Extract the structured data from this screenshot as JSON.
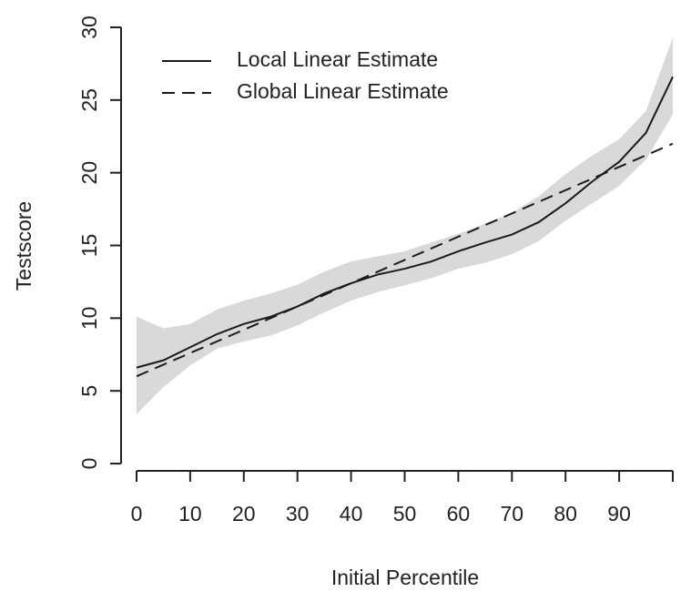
{
  "chart_data": {
    "type": "line",
    "x_label": "Initial Percentile",
    "y_label": "Testscore",
    "x": [
      0,
      5,
      10,
      15,
      20,
      25,
      30,
      35,
      40,
      45,
      50,
      55,
      60,
      65,
      70,
      75,
      80,
      85,
      90,
      95,
      100
    ],
    "series": [
      {
        "name": "Local Linear Estimate",
        "color": "#1a1a1a",
        "dash": "solid",
        "values": [
          6.6,
          7.1,
          8.0,
          8.9,
          9.6,
          10.1,
          10.8,
          11.7,
          12.4,
          13.0,
          13.4,
          13.9,
          14.6,
          15.2,
          15.75,
          16.6,
          17.9,
          19.4,
          20.75,
          22.75,
          26.6
        ]
      },
      {
        "name": "Global Linear Estimate",
        "color": "#1a1a1a",
        "dash": "dashed",
        "x": [
          0,
          100
        ],
        "values": [
          6.0,
          22.0
        ]
      }
    ],
    "band": {
      "color": "#d9d9d9",
      "lower": [
        3.4,
        5.25,
        6.75,
        7.9,
        8.4,
        8.8,
        9.5,
        10.4,
        11.2,
        11.8,
        12.25,
        12.75,
        13.4,
        13.8,
        14.4,
        15.3,
        16.7,
        17.9,
        19.1,
        20.9,
        24.0
      ],
      "upper": [
        10.1,
        9.3,
        9.6,
        10.6,
        11.2,
        11.7,
        12.3,
        13.2,
        13.9,
        14.25,
        14.6,
        15.2,
        15.8,
        16.5,
        17.25,
        18.4,
        19.9,
        21.2,
        22.3,
        24.25,
        29.3
      ]
    },
    "xlim": [
      0,
      100
    ],
    "xticks": [
      0,
      10,
      20,
      30,
      40,
      50,
      60,
      70,
      80,
      90
    ],
    "ylim": [
      0,
      30
    ],
    "yticks": [
      0,
      5,
      10,
      15,
      20,
      25,
      30
    ],
    "legend": "top-left"
  }
}
